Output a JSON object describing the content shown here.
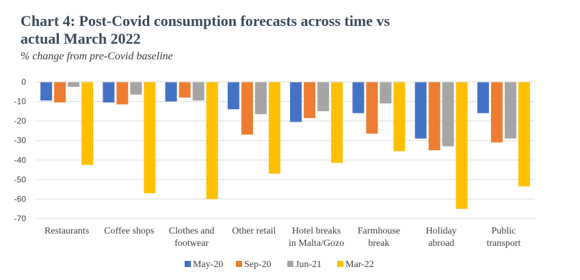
{
  "chart_data": {
    "type": "bar",
    "title_line1": "Chart 4: Post-Covid consumption forecasts across time vs",
    "title_line2": "actual March 2022",
    "subtitle": "% change from pre-Covid baseline",
    "xlabel": "",
    "ylabel": "",
    "ylim": [
      -70,
      0
    ],
    "yticks": [
      0,
      -10,
      -20,
      -30,
      -40,
      -50,
      -60,
      -70
    ],
    "grid": true,
    "legend_position": "bottom",
    "categories": [
      [
        "Restaurants"
      ],
      [
        "Coffee shops"
      ],
      [
        "Clothes and",
        "footwear"
      ],
      [
        "Other retail"
      ],
      [
        "Hotel breaks",
        "in Malta/Gozo"
      ],
      [
        "Farmhouse",
        "break"
      ],
      [
        "Holiday",
        "abroad"
      ],
      [
        "Public",
        "transport"
      ]
    ],
    "series": [
      {
        "name": "May-20",
        "color": "#4472c4",
        "values": [
          -9.5,
          -10.5,
          -10,
          -14,
          -20.5,
          -16,
          -29,
          -16
        ]
      },
      {
        "name": "Sep-20",
        "color": "#ed7d31",
        "values": [
          -10.5,
          -11.5,
          -8,
          -27,
          -18.5,
          -26.5,
          -35,
          -31
        ]
      },
      {
        "name": "Jun-21",
        "color": "#a5a5a5",
        "values": [
          -2.5,
          -6.5,
          -9.5,
          -16.5,
          -15,
          -11,
          -33,
          -29
        ]
      },
      {
        "name": "Mar-22",
        "color": "#ffc000",
        "values": [
          -42.5,
          -57,
          -60,
          -47,
          -41.5,
          -35.5,
          -65,
          -53.5
        ]
      }
    ]
  }
}
